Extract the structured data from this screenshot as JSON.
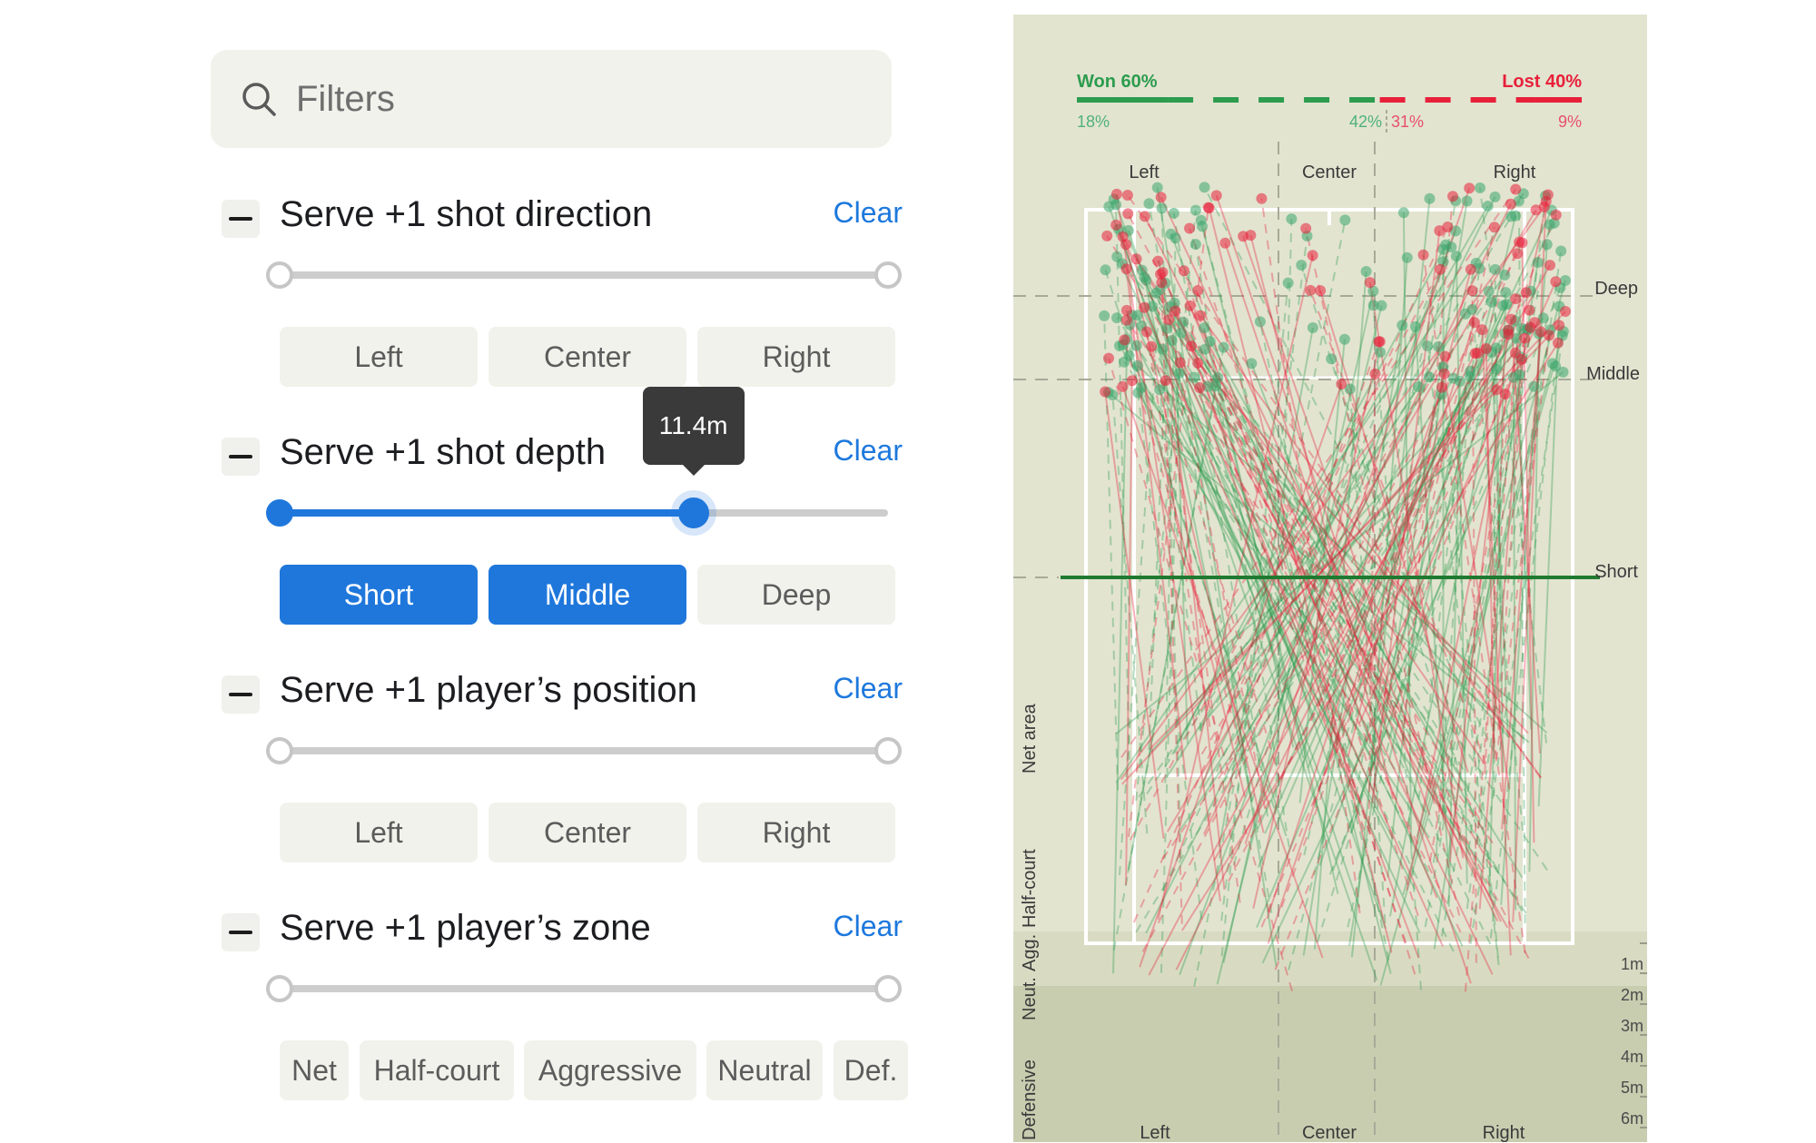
{
  "filters": {
    "search": {
      "placeholder": "Filters"
    },
    "sections": [
      {
        "title": "Serve +1 shot direction",
        "clear_label": "Clear",
        "slider": {
          "low": 0,
          "high": 1,
          "active": false
        },
        "options": [
          {
            "label": "Left",
            "selected": false
          },
          {
            "label": "Center",
            "selected": false
          },
          {
            "label": "Right",
            "selected": false
          }
        ]
      },
      {
        "title": "Serve +1 shot depth",
        "clear_label": "Clear",
        "slider": {
          "low": 0,
          "high": 0.68,
          "active": true,
          "tooltip": "11.4m"
        },
        "options": [
          {
            "label": "Short",
            "selected": true
          },
          {
            "label": "Middle",
            "selected": true
          },
          {
            "label": "Deep",
            "selected": false
          }
        ]
      },
      {
        "title": "Serve +1 player’s position",
        "clear_label": "Clear",
        "slider": {
          "low": 0,
          "high": 1,
          "active": false
        },
        "options": [
          {
            "label": "Left",
            "selected": false
          },
          {
            "label": "Center",
            "selected": false
          },
          {
            "label": "Right",
            "selected": false
          }
        ]
      },
      {
        "title": "Serve +1 player’s zone",
        "clear_label": "Clear",
        "slider": {
          "low": 0,
          "high": 1,
          "active": false
        },
        "options": [
          {
            "label": "Net",
            "selected": false
          },
          {
            "label": "Half-court",
            "selected": false
          },
          {
            "label": "Aggressive",
            "selected": false
          },
          {
            "label": "Neutral",
            "selected": false
          },
          {
            "label": "Def.",
            "selected": false
          }
        ]
      }
    ]
  },
  "chart_data": {
    "type": "scatter",
    "summary": {
      "won_label": "Won 60%",
      "lost_label": "Lost 40%",
      "won_pct": 60,
      "lost_pct": 40,
      "segments": [
        "18%",
        "42%",
        "31%",
        "9%"
      ],
      "segment_values": [
        18,
        42,
        31,
        9
      ]
    },
    "top_direction_labels": [
      "Left",
      "Center",
      "Right"
    ],
    "bottom_direction_labels": [
      "Left",
      "Center",
      "Right"
    ],
    "depth_labels": [
      "Deep",
      "Middle",
      "Short"
    ],
    "zone_labels": [
      "Net area",
      "Half-court",
      "Neut.",
      "Agg.",
      "Defensive"
    ],
    "distance_labels": [
      "1m",
      "2m",
      "3m",
      "4m",
      "5m",
      "6m"
    ],
    "depth_threshold_m": 11.4,
    "colors": {
      "won": "#2c9c4e",
      "lost": "#e8203a",
      "court_bg": "#e2e4d0",
      "won_point": "#3aa66b"
    },
    "n_shots_won": 150,
    "n_shots_lost": 100
  }
}
